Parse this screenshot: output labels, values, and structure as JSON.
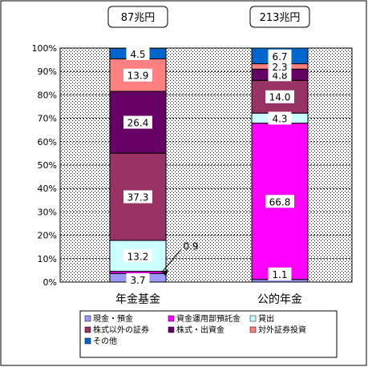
{
  "chart_data": {
    "type": "bar",
    "stacked": true,
    "percent_stacked": true,
    "categories": [
      "年金基金",
      "公的年金"
    ],
    "totals": [
      "87兆円",
      "213兆円"
    ],
    "ylim": [
      0,
      100
    ],
    "yticks": [
      "0%",
      "10%",
      "20%",
      "30%",
      "40%",
      "50%",
      "60%",
      "70%",
      "80%",
      "90%",
      "100%"
    ],
    "grid": true,
    "legend_position": "bottom",
    "series": [
      {
        "name": "現金・預金",
        "color": "#9999ff",
        "values": [
          3.7,
          1.1
        ]
      },
      {
        "name": "資金運用部預託金",
        "color": "#ff00ff",
        "values": [
          0.9,
          66.8
        ]
      },
      {
        "name": "貸出",
        "color": "#ccffff",
        "values": [
          13.2,
          4.3
        ]
      },
      {
        "name": "株式以外の証券",
        "color": "#993366",
        "values": [
          37.3,
          14.0
        ]
      },
      {
        "name": "株式・出資金",
        "color": "#660066",
        "values": [
          26.4,
          4.8
        ]
      },
      {
        "name": "対外証券投資",
        "color": "#ff8080",
        "values": [
          13.9,
          2.3
        ]
      },
      {
        "name": "その他",
        "color": "#0066cc",
        "values": [
          4.5,
          6.7
        ]
      }
    ],
    "data_labels": [
      [
        "3.7",
        "0.9",
        "13.2",
        "37.3",
        "26.4",
        "13.9",
        "4.5"
      ],
      [
        "1.1",
        "",
        "4.3",
        "14.0",
        "4.8",
        "2.3",
        "6.7"
      ]
    ],
    "inner_labels_extra": [
      [
        "",
        "",
        "",
        "",
        "",
        "",
        ""
      ],
      [
        "",
        "66.8",
        "",
        "",
        "",
        "",
        ""
      ]
    ]
  }
}
